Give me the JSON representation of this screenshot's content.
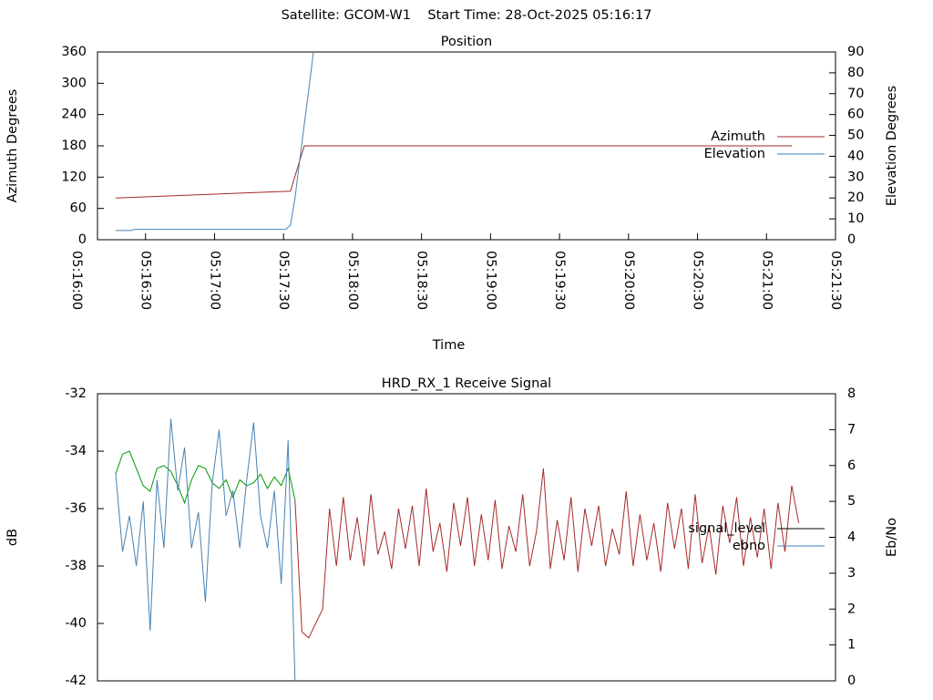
{
  "title": "Satellite: GCOM-W1    Start Time: 28-Oct-2025 05:16:17",
  "chart_data": [
    {
      "type": "line",
      "title": "Position",
      "xlabel": "Time",
      "ylabel": "Azimuth Degrees",
      "y2label": "Elevation Degrees",
      "xlim": [
        "05:16:00",
        "05:21:30"
      ],
      "xticks": [
        "05:16:00",
        "05:16:30",
        "05:17:00",
        "05:17:30",
        "05:18:00",
        "05:18:30",
        "05:19:00",
        "05:19:30",
        "05:20:00",
        "05:20:30",
        "05:21:00",
        "05:21:30"
      ],
      "ylim": [
        0,
        360
      ],
      "yticks": [
        0,
        60,
        120,
        180,
        240,
        300,
        360
      ],
      "y2lim": [
        0,
        90
      ],
      "y2ticks": [
        0,
        10,
        20,
        30,
        40,
        50,
        60,
        70,
        80,
        90
      ],
      "legend": "right",
      "series": [
        {
          "name": "Azimuth",
          "color": "#a52a2a",
          "x": [
            "05:16:17",
            "05:17:33",
            "05:17:39",
            "05:21:11"
          ],
          "values": [
            80,
            93,
            180,
            180
          ]
        },
        {
          "name": "Elevation",
          "color": "#4682b4",
          "axis": "y2",
          "x": [
            "05:16:17",
            "05:16:24",
            "05:16:25",
            "05:17:31",
            "05:17:33",
            "05:17:35",
            "05:17:37",
            "05:17:39",
            "05:17:41",
            "05:17:43"
          ],
          "values": [
            4.4,
            4.4,
            5,
            5,
            7,
            20,
            38,
            55,
            72,
            90
          ]
        }
      ]
    },
    {
      "type": "line",
      "title": "HRD_RX_1 Receive Signal",
      "ylabel": "dB",
      "y2label": "Eb/No",
      "xlim": [
        "05:16:00",
        "05:21:30"
      ],
      "ylim": [
        -42,
        -32
      ],
      "yticks": [
        -42,
        -40,
        -38,
        -36,
        -34,
        -32
      ],
      "y2lim": [
        0,
        8
      ],
      "y2ticks": [
        0,
        1,
        2,
        3,
        4,
        5,
        6,
        7,
        8
      ],
      "legend": "right",
      "series": [
        {
          "color": "#009900",
          "x": [
            "05:16:17",
            "05:16:20",
            "05:16:23",
            "05:16:26",
            "05:16:29",
            "05:16:32",
            "05:16:35",
            "05:16:38",
            "05:16:41",
            "05:16:44",
            "05:16:47",
            "05:16:50",
            "05:16:53",
            "05:16:56",
            "05:16:59",
            "05:17:02",
            "05:17:05",
            "05:17:08",
            "05:17:11",
            "05:17:14",
            "05:17:17",
            "05:17:20",
            "05:17:23",
            "05:17:26",
            "05:17:29",
            "05:17:32",
            "05:17:35"
          ],
          "values": [
            -34.8,
            -34.1,
            -34.0,
            -34.6,
            -35.2,
            -35.4,
            -34.6,
            -34.5,
            -34.7,
            -35.2,
            -35.8,
            -35.0,
            -34.5,
            -34.6,
            -35.1,
            -35.3,
            -35.0,
            -35.6,
            -35.0,
            -35.2,
            -35.1,
            -34.8,
            -35.3,
            -34.9,
            -35.2,
            -34.6,
            -35.7
          ]
        },
        {
          "name": "signal_level",
          "color": "#a52a2a",
          "legend_color": "#000000",
          "x": [
            "05:17:35",
            "05:17:38",
            "05:17:41",
            "05:17:44",
            "05:17:47",
            "05:17:50",
            "05:17:53",
            "05:17:56",
            "05:17:59",
            "05:18:02",
            "05:18:05",
            "05:18:08",
            "05:18:11",
            "05:18:14",
            "05:18:17",
            "05:18:20",
            "05:18:23",
            "05:18:26",
            "05:18:29",
            "05:18:32",
            "05:18:35",
            "05:18:38",
            "05:18:41",
            "05:18:44",
            "05:18:47",
            "05:18:50",
            "05:18:53",
            "05:18:56",
            "05:18:59",
            "05:19:02",
            "05:19:05",
            "05:19:08",
            "05:19:11",
            "05:19:14",
            "05:19:17",
            "05:19:20",
            "05:19:23",
            "05:19:26",
            "05:19:29",
            "05:19:32",
            "05:19:35",
            "05:19:38",
            "05:19:41",
            "05:19:44",
            "05:19:47",
            "05:19:50",
            "05:19:53",
            "05:19:56",
            "05:19:59",
            "05:20:02",
            "05:20:05",
            "05:20:08",
            "05:20:11",
            "05:20:14",
            "05:20:17",
            "05:20:20",
            "05:20:23",
            "05:20:26",
            "05:20:29",
            "05:20:32",
            "05:20:35",
            "05:20:38",
            "05:20:41",
            "05:20:44",
            "05:20:47",
            "05:20:50",
            "05:20:53",
            "05:20:56",
            "05:20:59",
            "05:21:02",
            "05:21:05",
            "05:21:08",
            "05:21:11",
            "05:21:14"
          ],
          "values": [
            -35.7,
            -40.3,
            -40.5,
            -40.0,
            -39.5,
            -36.0,
            -38.0,
            -35.6,
            -37.8,
            -36.3,
            -38.0,
            -35.5,
            -37.6,
            -36.8,
            -38.1,
            -36.0,
            -37.4,
            -35.9,
            -38.0,
            -35.3,
            -37.5,
            -36.5,
            -38.2,
            -35.8,
            -37.3,
            -35.6,
            -38.0,
            -36.2,
            -37.8,
            -35.7,
            -38.1,
            -36.6,
            -37.5,
            -35.5,
            -38.0,
            -36.8,
            -34.6,
            -38.1,
            -36.4,
            -37.8,
            -35.6,
            -38.2,
            -36.0,
            -37.3,
            -35.9,
            -38.0,
            -36.7,
            -37.6,
            -35.4,
            -38.0,
            -36.2,
            -37.8,
            -36.5,
            -38.2,
            -35.8,
            -37.4,
            -36.0,
            -38.1,
            -35.5,
            -37.9,
            -36.6,
            -38.3,
            -35.9,
            -37.2,
            -35.6,
            -38.0,
            -36.3,
            -37.7,
            -36.0,
            -38.1,
            -35.8,
            -37.5,
            -35.2,
            -36.5
          ]
        },
        {
          "name": "ebno",
          "color": "#4682b4",
          "axis": "y2",
          "x": [
            "05:16:17",
            "05:16:20",
            "05:16:23",
            "05:16:26",
            "05:16:29",
            "05:16:32",
            "05:16:35",
            "05:16:38",
            "05:16:41",
            "05:16:44",
            "05:16:47",
            "05:16:50",
            "05:16:53",
            "05:16:56",
            "05:16:59",
            "05:17:02",
            "05:17:05",
            "05:17:08",
            "05:17:11",
            "05:17:14",
            "05:17:17",
            "05:17:20",
            "05:17:23",
            "05:17:26",
            "05:17:29",
            "05:17:32",
            "05:17:35"
          ],
          "values": [
            5.8,
            3.6,
            4.6,
            3.2,
            5.0,
            1.4,
            5.6,
            3.7,
            7.3,
            5.3,
            6.5,
            3.7,
            4.7,
            2.2,
            5.5,
            7.0,
            4.6,
            5.3,
            3.7,
            5.6,
            7.2,
            4.6,
            3.7,
            5.3,
            2.7,
            6.7,
            0
          ]
        }
      ]
    }
  ]
}
